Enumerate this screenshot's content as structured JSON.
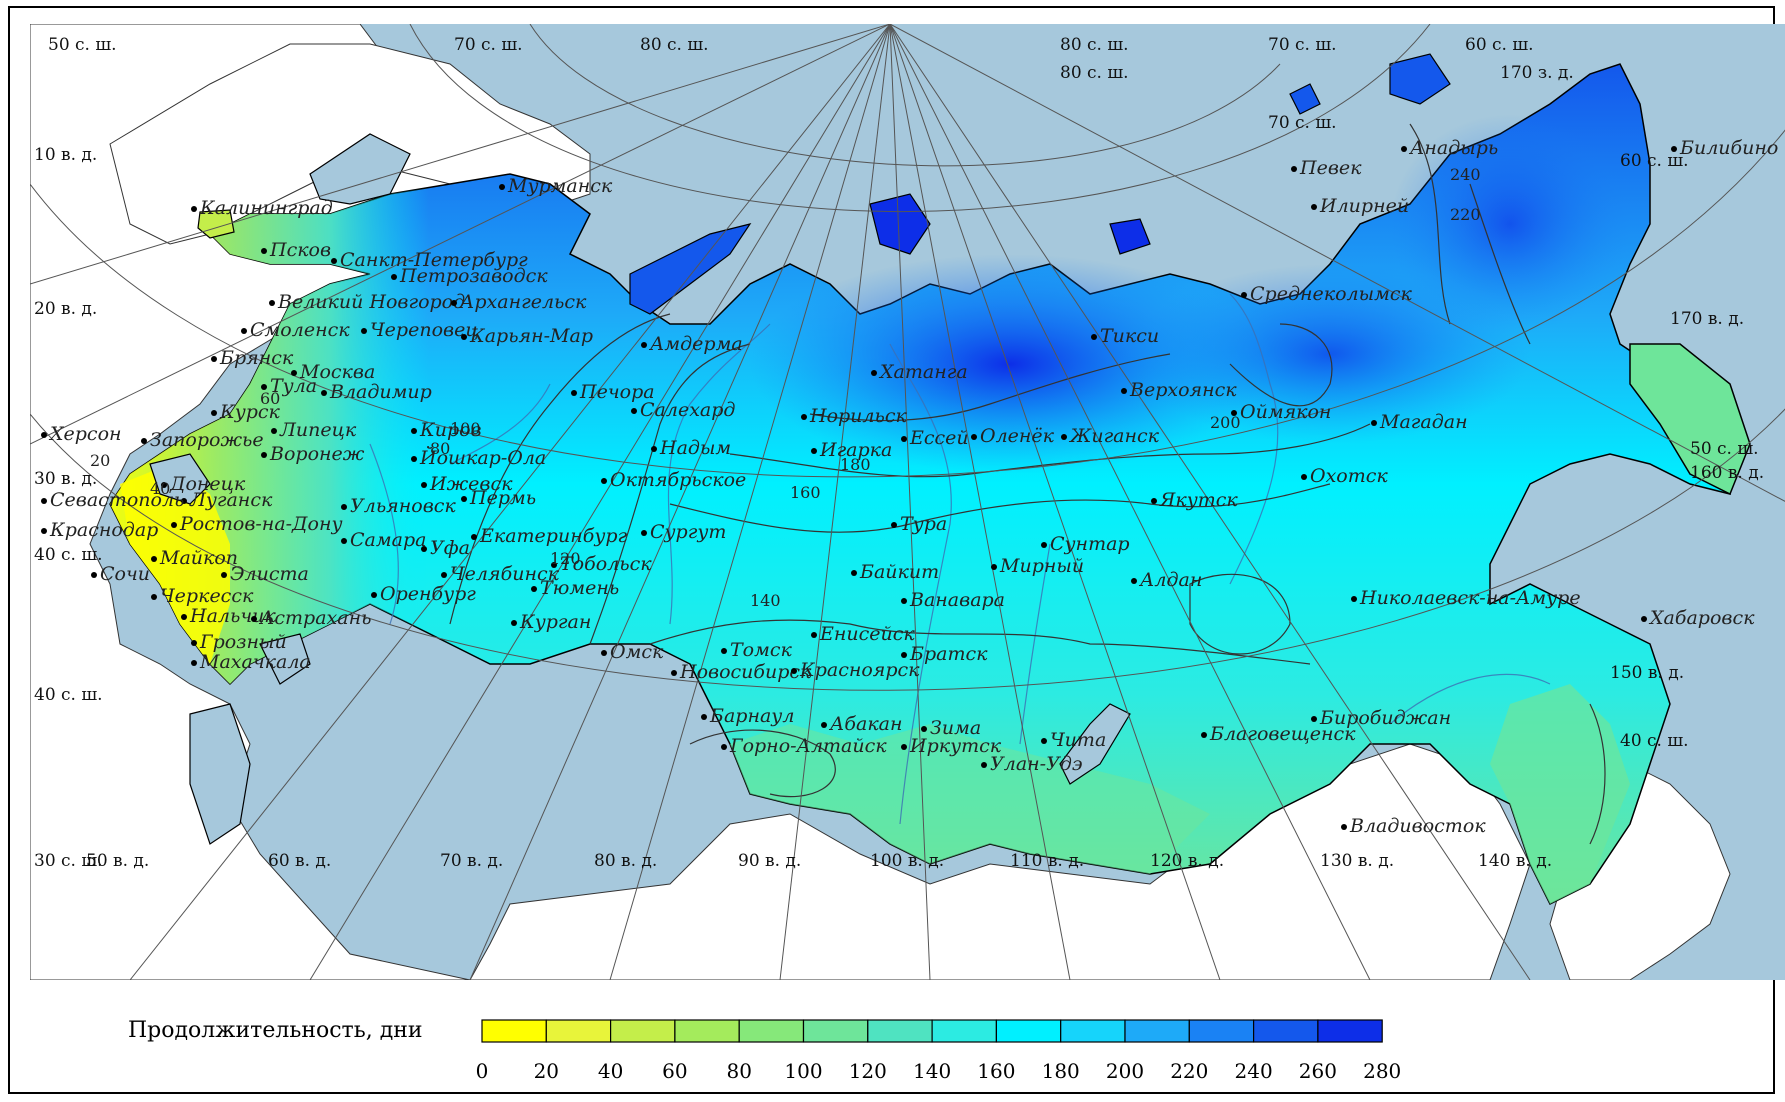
{
  "legend": {
    "title": "Продолжительность, дни",
    "ticks": [
      "0",
      "20",
      "40",
      "60",
      "80",
      "100",
      "120",
      "140",
      "160",
      "180",
      "200",
      "220",
      "240",
      "260",
      "280"
    ],
    "colors": [
      "#ffff00",
      "#e8f43a",
      "#c4ee4a",
      "#a4eb5c",
      "#86e87a",
      "#6ee59a",
      "#4fe3c1",
      "#2cebe2",
      "#00f0ff",
      "#16d4fb",
      "#1eaaf8",
      "#1a82f4",
      "#1458ec",
      "#0d2ee8"
    ]
  },
  "colors": {
    "ocean": "#a6c8dc",
    "land_outside": "#ffffff",
    "border": "#000000",
    "isoline": "#333333",
    "river": "#3c6fb4",
    "grid": "#555555"
  },
  "grid_labels": [
    {
      "id": "lat50",
      "text": "50 с. ш."
    },
    {
      "id": "lat70a",
      "text": "70 с. ш."
    },
    {
      "id": "lat80top",
      "text": "80 с. ш."
    },
    {
      "id": "lat80b",
      "text": "80 с. ш."
    },
    {
      "id": "lat80c",
      "text": "80 с. ш."
    },
    {
      "id": "lat70b",
      "text": "70 с. ш."
    },
    {
      "id": "lat60tr",
      "text": "60 с. ш."
    },
    {
      "id": "lon170w",
      "text": "170 з. д."
    },
    {
      "id": "lat70c",
      "text": "70 с. ш."
    },
    {
      "id": "lon10",
      "text": "10 в. д."
    },
    {
      "id": "lon20",
      "text": "20 в. д."
    },
    {
      "id": "lon30",
      "text": "30 в. д."
    },
    {
      "id": "lat40",
      "text": "40 с. ш."
    },
    {
      "id": "lat40b",
      "text": "40 с. ш."
    },
    {
      "id": "lat30",
      "text": "30 с. ш."
    },
    {
      "id": "lon50",
      "text": "50 в. д."
    },
    {
      "id": "lon60",
      "text": "60 в. д."
    },
    {
      "id": "lon70",
      "text": "70 в. д."
    },
    {
      "id": "lon80",
      "text": "80 в. д."
    },
    {
      "id": "lon90",
      "text": "90 в. д."
    },
    {
      "id": "lon100",
      "text": "100 в. д."
    },
    {
      "id": "lon110",
      "text": "110 в. д."
    },
    {
      "id": "lon120",
      "text": "120 в. д."
    },
    {
      "id": "lon130",
      "text": "130 в. д."
    },
    {
      "id": "lon140",
      "text": "140 в. д."
    },
    {
      "id": "lon150",
      "text": "150 в. д."
    },
    {
      "id": "lon160",
      "text": "160 в. д."
    },
    {
      "id": "lon170",
      "text": "170 в. д."
    },
    {
      "id": "lat50r",
      "text": "50 с. ш."
    },
    {
      "id": "lat60r",
      "text": "60 с. ш."
    },
    {
      "id": "lat40r",
      "text": "40 с. ш."
    }
  ],
  "cities": [
    "Мурманск",
    "Калининград",
    "Псков",
    "Санкт-Петербург",
    "Петрозаводск",
    "Великий Новгород",
    "Архангельск",
    "Смоленск",
    "Череповец",
    "Карьян-Мар",
    "Брянск",
    "Тула",
    "Москва",
    "Владимир",
    "Курск",
    "Липецк",
    "Воронеж",
    "Киров",
    "Йошкар-Ола",
    "Ижевск",
    "Пермь",
    "Херсон",
    "Запорожье",
    "Донецк",
    "Луганск",
    "Севастополь",
    "Ростов-на-Дону",
    "Ульяновск",
    "Краснодар",
    "Майкоп",
    "Элиста",
    "Самара",
    "Уфа",
    "Екатеринбург",
    "Сочи",
    "Черкесск",
    "Нальчик",
    "Махачкала",
    "Грозный",
    "Астрахань",
    "Оренбург",
    "Челябинск",
    "Тюмень",
    "Курган",
    "Тобольск",
    "Сургут",
    "Октябрьское",
    "Печора",
    "Салехард",
    "Надым",
    "Амдерма",
    "Норильск",
    "Игарка",
    "Хатанга",
    "Тура",
    "Ессей",
    "Оленёк",
    "Жиганск",
    "Верхоянск",
    "Тикси",
    "Якутск",
    "Оймякон",
    "Мирный",
    "Сунтар",
    "Алдан",
    "Ванавара",
    "Байкит",
    "Енисейск",
    "Томск",
    "Омск",
    "Новосибирск",
    "Красноярск",
    "Братск",
    "Барнаул",
    "Абакан",
    "Горно-Алтайск",
    "Иркутск",
    "Улан-Удэ",
    "Чита",
    "Зима",
    "Благовещенск",
    "Биробиджан",
    "Хабаровск",
    "Владивосток",
    "Николаевск-на-Амуре",
    "Охотск",
    "Магадан",
    "Среднеколымск",
    "Анадырь",
    "Певек",
    "Билибино",
    "Илирней"
  ],
  "isolines": [
    "20",
    "40",
    "60",
    "80",
    "100",
    "120",
    "140",
    "160",
    "180",
    "200",
    "220",
    "240"
  ]
}
